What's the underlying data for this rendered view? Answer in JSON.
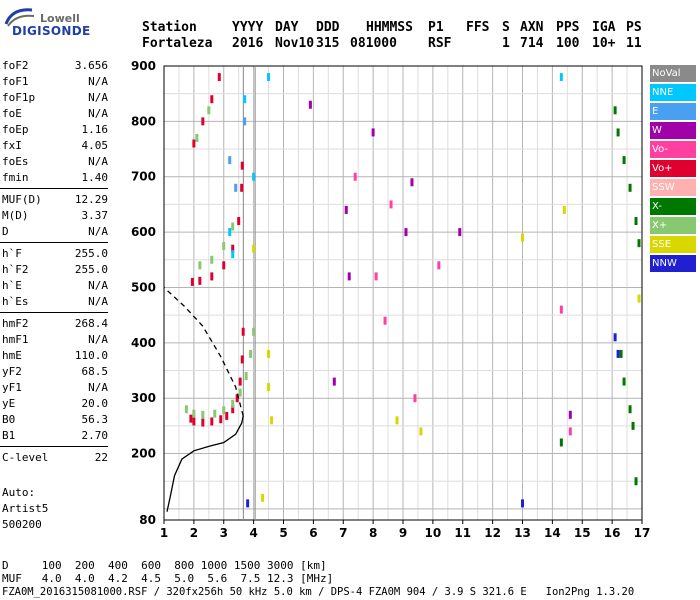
{
  "logo": {
    "line1": "Lowell",
    "line2": "DIGISONDE"
  },
  "header": {
    "row1": [
      "Station",
      "YYYY",
      "DAY",
      "DDD",
      "HHMMSS",
      "P1",
      "FFS",
      "S",
      "AXN",
      "PPS",
      "IGA",
      "PS"
    ],
    "row2": [
      "Fortaleza",
      "2016",
      "Nov10",
      "315",
      "081000",
      "RSF",
      "1",
      "714",
      "100",
      "10+",
      "11"
    ]
  },
  "params": [
    {
      "name": "foF2",
      "value": "3.656"
    },
    {
      "name": "foF1",
      "value": "N/A"
    },
    {
      "name": "foF1p",
      "value": "N/A"
    },
    {
      "name": "foE",
      "value": "N/A"
    },
    {
      "name": "foEp",
      "value": "1.16"
    },
    {
      "name": "fxI",
      "value": "4.05"
    },
    {
      "name": "foEs",
      "value": "N/A"
    },
    {
      "name": "fmin",
      "value": "1.40"
    },
    {
      "name": "MUF(D)",
      "value": "12.29"
    },
    {
      "name": "M(D)",
      "value": "3.37"
    },
    {
      "name": "D",
      "value": "N/A"
    },
    {
      "name": "h`F",
      "value": "255.0"
    },
    {
      "name": "h`F2",
      "value": "255.0"
    },
    {
      "name": "h`E",
      "value": "N/A"
    },
    {
      "name": "h`Es",
      "value": "N/A"
    },
    {
      "name": "hmF2",
      "value": "268.4"
    },
    {
      "name": "hmF1",
      "value": "N/A"
    },
    {
      "name": "hmE",
      "value": "110.0"
    },
    {
      "name": "yF2",
      "value": "68.5"
    },
    {
      "name": "yF1",
      "value": "N/A"
    },
    {
      "name": "yE",
      "value": "20.0"
    },
    {
      "name": "B0",
      "value": "56.3"
    },
    {
      "name": "B1",
      "value": "2.70"
    },
    {
      "name": "C-level",
      "value": "22"
    }
  ],
  "auto": {
    "label": "Auto:",
    "program": "Artist5",
    "version": "500200"
  },
  "legend": [
    {
      "label": "NoVal",
      "color": "#8a8a8a"
    },
    {
      "label": "NNE",
      "color": "#00c8ff"
    },
    {
      "label": "E",
      "color": "#4aa0f0"
    },
    {
      "label": "W",
      "color": "#a000a8"
    },
    {
      "label": "Vo-",
      "color": "#ff40a0"
    },
    {
      "label": "Vo+",
      "color": "#e00030"
    },
    {
      "label": "SSW",
      "color": "#ffb0b0"
    },
    {
      "label": "X-",
      "color": "#007800"
    },
    {
      "label": "X+",
      "color": "#88c870"
    },
    {
      "label": "SSE",
      "color": "#d8d800"
    },
    {
      "label": "NNW",
      "color": "#2020d0"
    }
  ],
  "footer": {
    "d_label": "D",
    "d_values": [
      "100",
      "200",
      "400",
      "600",
      "800",
      "1000",
      "1500",
      "3000"
    ],
    "d_unit": "[km]",
    "muf_label": "MUF",
    "muf_values": [
      "4.0",
      "4.0",
      "4.2",
      "4.5",
      "5.0",
      "5.6",
      "7.5",
      "12.3"
    ],
    "muf_unit": "[MHz]",
    "info": "FZA0M_2016315081000.RSF / 320fx256h 50 kHz 5.0 km / DPS-4 FZA0M 904 / 3.9 S 321.6 E   Ion2Png 1.3.20"
  },
  "chart_data": {
    "type": "scatter",
    "title": "",
    "xlabel": "",
    "ylabel": "",
    "xlim": [
      1,
      17
    ],
    "ylim": [
      80,
      900
    ],
    "x_ticks": [
      "1",
      "2",
      "3",
      "4",
      "5",
      "6",
      "7",
      "8",
      "9",
      "10",
      "11",
      "12",
      "13",
      "14",
      "15",
      "16",
      "17"
    ],
    "y_ticks": [
      "80",
      "200",
      "300",
      "400",
      "500",
      "600",
      "700",
      "800",
      "900"
    ],
    "grid": true,
    "legend_position": "right",
    "vertical_markers": [
      {
        "x": 3.656,
        "color": "#888888"
      },
      {
        "x": 4.05,
        "color": "#888888"
      }
    ],
    "series": [
      {
        "name": "Vo+",
        "color": "#e00030",
        "points": [
          [
            1.9,
            263
          ],
          [
            2.0,
            258
          ],
          [
            2.3,
            256
          ],
          [
            2.6,
            258
          ],
          [
            2.9,
            262
          ],
          [
            3.1,
            268
          ],
          [
            3.3,
            280
          ],
          [
            3.45,
            300
          ],
          [
            3.55,
            330
          ],
          [
            3.62,
            370
          ],
          [
            3.65,
            420
          ],
          [
            1.95,
            510
          ],
          [
            2.2,
            512
          ],
          [
            2.6,
            520
          ],
          [
            3.0,
            540
          ],
          [
            3.3,
            570
          ],
          [
            3.5,
            620
          ],
          [
            3.6,
            680
          ],
          [
            3.62,
            720
          ],
          [
            2.0,
            760
          ],
          [
            2.3,
            800
          ],
          [
            2.6,
            840
          ],
          [
            2.85,
            880
          ]
        ]
      },
      {
        "name": "X+",
        "color": "#88c870",
        "points": [
          [
            1.75,
            280
          ],
          [
            2.0,
            272
          ],
          [
            2.3,
            270
          ],
          [
            2.7,
            272
          ],
          [
            3.0,
            278
          ],
          [
            3.3,
            290
          ],
          [
            3.55,
            310
          ],
          [
            3.75,
            340
          ],
          [
            3.9,
            380
          ],
          [
            4.0,
            420
          ],
          [
            2.2,
            540
          ],
          [
            2.6,
            550
          ],
          [
            3.0,
            575
          ],
          [
            3.3,
            610
          ],
          [
            2.1,
            770
          ],
          [
            2.5,
            820
          ]
        ]
      },
      {
        "name": "X-",
        "color": "#007800",
        "points": [
          [
            16.1,
            820
          ],
          [
            16.2,
            780
          ],
          [
            16.4,
            730
          ],
          [
            16.6,
            680
          ],
          [
            16.8,
            620
          ],
          [
            16.9,
            580
          ],
          [
            16.3,
            380
          ],
          [
            16.4,
            330
          ],
          [
            16.6,
            280
          ],
          [
            16.7,
            250
          ],
          [
            14.3,
            220
          ],
          [
            16.8,
            150
          ]
        ]
      },
      {
        "name": "W",
        "color": "#a000a8",
        "points": [
          [
            7.1,
            640
          ],
          [
            7.2,
            520
          ],
          [
            8.0,
            780
          ],
          [
            9.1,
            600
          ],
          [
            9.3,
            690
          ],
          [
            10.9,
            600
          ],
          [
            14.6,
            270
          ],
          [
            6.7,
            330
          ],
          [
            5.9,
            830
          ]
        ]
      },
      {
        "name": "SSE",
        "color": "#d8d800",
        "points": [
          [
            4.5,
            380
          ],
          [
            4.5,
            320
          ],
          [
            4.6,
            260
          ],
          [
            8.8,
            260
          ],
          [
            9.6,
            240
          ],
          [
            13.0,
            590
          ],
          [
            14.4,
            640
          ],
          [
            16.9,
            480
          ],
          [
            4.0,
            570
          ],
          [
            4.3,
            120
          ]
        ]
      },
      {
        "name": "NNE",
        "color": "#00c8ff",
        "points": [
          [
            3.2,
            600
          ],
          [
            3.3,
            560
          ],
          [
            3.7,
            840
          ],
          [
            4.0,
            700
          ],
          [
            4.5,
            880
          ],
          [
            14.3,
            880
          ]
        ]
      },
      {
        "name": "Vo-",
        "color": "#ff40a0",
        "points": [
          [
            7.4,
            700
          ],
          [
            8.1,
            520
          ],
          [
            8.4,
            440
          ],
          [
            9.4,
            300
          ],
          [
            14.3,
            460
          ],
          [
            14.6,
            240
          ],
          [
            8.6,
            650
          ],
          [
            10.2,
            540
          ]
        ]
      },
      {
        "name": "NNW",
        "color": "#2020d0",
        "points": [
          [
            16.1,
            410
          ],
          [
            16.2,
            380
          ],
          [
            13.0,
            110
          ],
          [
            3.8,
            110
          ]
        ]
      },
      {
        "name": "E",
        "color": "#4aa0f0",
        "points": [
          [
            3.2,
            730
          ],
          [
            3.4,
            680
          ],
          [
            3.7,
            800
          ]
        ]
      }
    ],
    "lines": [
      {
        "name": "profile",
        "color": "#000000",
        "style": "solid",
        "points": [
          [
            1.1,
            95
          ],
          [
            1.2,
            120
          ],
          [
            1.35,
            160
          ],
          [
            1.6,
            190
          ],
          [
            2.0,
            205
          ],
          [
            2.5,
            213
          ],
          [
            3.0,
            220
          ],
          [
            3.4,
            235
          ],
          [
            3.6,
            255
          ],
          [
            3.65,
            268
          ]
        ]
      },
      {
        "name": "profile-extrapolation",
        "color": "#000000",
        "style": "dashed",
        "points": [
          [
            3.65,
            268
          ],
          [
            3.4,
            320
          ],
          [
            2.9,
            375
          ],
          [
            2.3,
            430
          ],
          [
            1.7,
            465
          ],
          [
            1.2,
            490
          ],
          [
            1.0,
            500
          ]
        ]
      }
    ]
  }
}
